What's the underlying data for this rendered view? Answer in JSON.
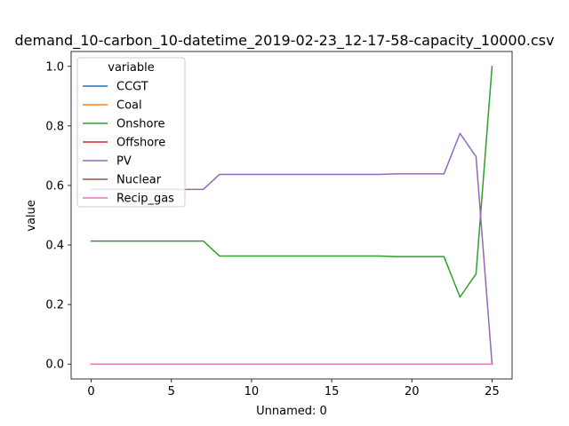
{
  "chart_data": {
    "type": "line",
    "title": "demand_10-carbon_10-datetime_2019-02-23_12-17-58-capacity_10000.csv",
    "xlabel": "Unnamed: 0",
    "ylabel": "value",
    "xlim": [
      -1.25,
      26.25
    ],
    "ylim": [
      -0.05,
      1.05
    ],
    "xticks": [
      0,
      5,
      10,
      15,
      20,
      25
    ],
    "xtick_labels": [
      "0",
      "5",
      "10",
      "15",
      "20",
      "25"
    ],
    "yticks": [
      0.0,
      0.2,
      0.4,
      0.6,
      0.8,
      1.0
    ],
    "ytick_labels": [
      "0.0",
      "0.2",
      "0.4",
      "0.6",
      "0.8",
      "1.0"
    ],
    "grid": false,
    "legend": {
      "title": "variable",
      "placement": "upper-left"
    },
    "x": [
      0,
      1,
      2,
      3,
      4,
      5,
      6,
      7,
      8,
      9,
      10,
      11,
      12,
      13,
      14,
      15,
      16,
      17,
      18,
      19,
      20,
      21,
      22,
      23,
      24,
      25
    ],
    "series": [
      {
        "name": "CCGT",
        "color": "#1f77b4",
        "values": [
          0,
          0,
          0,
          0,
          0,
          0,
          0,
          0,
          0,
          0,
          0,
          0,
          0,
          0,
          0,
          0,
          0,
          0,
          0,
          0,
          0,
          0,
          0,
          0,
          0,
          0
        ]
      },
      {
        "name": "Coal",
        "color": "#ff7f0e",
        "values": [
          0,
          0,
          0,
          0,
          0,
          0,
          0,
          0,
          0,
          0,
          0,
          0,
          0,
          0,
          0,
          0,
          0,
          0,
          0,
          0,
          0,
          0,
          0,
          0,
          0,
          0
        ]
      },
      {
        "name": "Onshore",
        "color": "#2ca02c",
        "values": [
          0.413,
          0.413,
          0.413,
          0.413,
          0.413,
          0.413,
          0.413,
          0.413,
          0.363,
          0.363,
          0.363,
          0.363,
          0.363,
          0.363,
          0.363,
          0.363,
          0.363,
          0.363,
          0.363,
          0.361,
          0.361,
          0.361,
          0.361,
          0.225,
          0.303,
          1.0
        ]
      },
      {
        "name": "Offshore",
        "color": "#d62728",
        "values": [
          0,
          0,
          0,
          0,
          0,
          0,
          0,
          0,
          0,
          0,
          0,
          0,
          0,
          0,
          0,
          0,
          0,
          0,
          0,
          0,
          0,
          0,
          0,
          0,
          0,
          0
        ]
      },
      {
        "name": "PV",
        "color": "#9467bd",
        "values": [
          0.587,
          0.587,
          0.587,
          0.587,
          0.587,
          0.587,
          0.587,
          0.587,
          0.637,
          0.637,
          0.637,
          0.637,
          0.637,
          0.637,
          0.637,
          0.637,
          0.637,
          0.637,
          0.637,
          0.639,
          0.639,
          0.639,
          0.639,
          0.775,
          0.697,
          0.0
        ]
      },
      {
        "name": "Nuclear",
        "color": "#8c564b",
        "values": [
          0,
          0,
          0,
          0,
          0,
          0,
          0,
          0,
          0,
          0,
          0,
          0,
          0,
          0,
          0,
          0,
          0,
          0,
          0,
          0,
          0,
          0,
          0,
          0,
          0,
          0
        ]
      },
      {
        "name": "Recip_gas",
        "color": "#e377c2",
        "values": [
          0,
          0,
          0,
          0,
          0,
          0,
          0,
          0,
          0,
          0,
          0,
          0,
          0,
          0,
          0,
          0,
          0,
          0,
          0,
          0,
          0,
          0,
          0,
          0,
          0,
          0
        ]
      }
    ]
  }
}
